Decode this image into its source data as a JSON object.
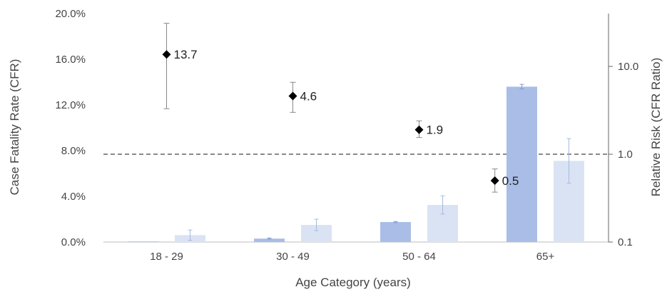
{
  "chart_data": {
    "type": "bar",
    "xlabel": "Age Category (years)",
    "ylabel": "Case Fatality Rate (CFR)",
    "y2label": "Relative Risk (CFR Ratio)",
    "categories": [
      "18 - 29",
      "30 - 49",
      "50 - 64",
      "65+"
    ],
    "ylim": [
      0,
      20
    ],
    "yticks": [
      "0.0%",
      "4.0%",
      "8.0%",
      "12.0%",
      "16.0%",
      "20.0%"
    ],
    "y2lim": [
      0.1,
      40
    ],
    "y2scale": "log",
    "y2ticks": [
      "0.1",
      "1.0",
      "10.0"
    ],
    "reference_line": {
      "axis": "right",
      "value": 1.0,
      "style": "dashed"
    },
    "series": [
      {
        "axis": "left",
        "color": "#a9bde6",
        "values": [
          0.05,
          0.3,
          1.75,
          13.6
        ],
        "error": [
          0.0,
          0.05,
          0.05,
          0.2
        ]
      },
      {
        "axis": "left",
        "color": "#d9e3f4",
        "values": [
          0.6,
          1.5,
          3.25,
          7.1
        ],
        "error": [
          0.45,
          0.5,
          0.8,
          1.95
        ]
      },
      {
        "axis": "right",
        "marker": "diamond",
        "color": "#000000",
        "values": [
          13.7,
          4.6,
          1.9,
          0.5
        ],
        "labels": [
          "13.7",
          "4.6",
          "1.9",
          "0.5"
        ],
        "error_low": [
          3.3,
          3.0,
          1.55,
          0.37
        ],
        "error_high": [
          31.0,
          6.6,
          2.4,
          0.68
        ]
      }
    ]
  }
}
